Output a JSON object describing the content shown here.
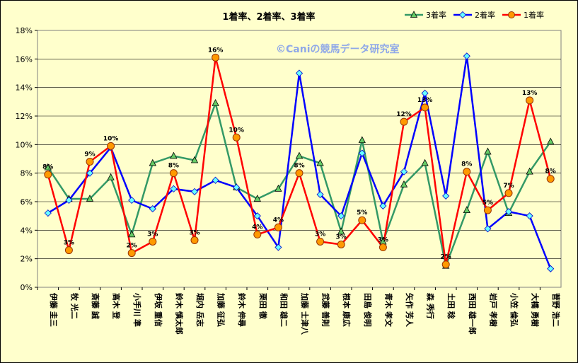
{
  "chart_data": {
    "type": "line",
    "title": "1着率、2着率、3着率",
    "watermark": "©Caniの競馬データ研究室",
    "ylim": [
      0,
      18
    ],
    "yticks": [
      "0%",
      "2%",
      "4%",
      "6%",
      "8%",
      "10%",
      "12%",
      "14%",
      "16%",
      "18%"
    ],
    "categories": [
      "伊藤 圭三",
      "牧 光二",
      "斎藤 誠",
      "高木 登",
      "小手川 準",
      "伊坂 重信",
      "鈴木 慎太郎",
      "堀内 岳志",
      "加藤 征弘",
      "鈴木 伸尋",
      "栗田 徹",
      "和田 雄二",
      "加藤 士津八",
      "武藤 善則",
      "根本 康広",
      "田島 俊明",
      "青木 孝文",
      "矢作 芳人",
      "森 秀行",
      "土田 稔",
      "西田 雄一郎",
      "岩戸 孝樹",
      "小笠 倫弘",
      "大橋 勇樹",
      "菅野 浩二"
    ],
    "grid": true,
    "legend_position": "top-right",
    "series": [
      {
        "name": "3着率",
        "color": "#339966",
        "marker": "triangle",
        "values": [
          8.4,
          6.2,
          6.2,
          7.7,
          3.7,
          8.7,
          9.2,
          8.9,
          12.9,
          7.0,
          6.2,
          6.9,
          9.2,
          8.7,
          3.9,
          10.3,
          3.2,
          7.2,
          8.7,
          1.5,
          5.4,
          9.5,
          5.2,
          8.1,
          10.2
        ]
      },
      {
        "name": "2着率",
        "color": "#0000FF",
        "marker": "diamond",
        "values": [
          5.2,
          6.1,
          8.0,
          9.8,
          6.1,
          5.5,
          6.9,
          6.7,
          7.5,
          7.0,
          5.0,
          2.8,
          15.0,
          6.5,
          5.0,
          9.4,
          5.7,
          8.1,
          13.6,
          6.4,
          16.2,
          4.1,
          5.3,
          5.0,
          1.3
        ]
      },
      {
        "name": "1着率",
        "color": "#FF0000",
        "marker": "circle",
        "values": [
          7.9,
          2.6,
          8.8,
          9.9,
          2.4,
          3.2,
          8.0,
          3.3,
          16.1,
          10.5,
          3.7,
          4.2,
          8.0,
          3.2,
          3.0,
          4.7,
          2.8,
          11.6,
          12.6,
          1.6,
          8.1,
          5.4,
          6.6,
          13.1,
          7.6
        ],
        "data_labels": [
          "8%",
          "3%",
          "9%",
          "10%",
          "2%",
          "3%",
          "8%",
          "3%",
          "16%",
          "10%",
          "4%",
          "4%",
          "8%",
          "3%",
          "3%",
          "5%",
          "3%",
          "12%",
          "13%",
          "2%",
          "8%",
          "5%",
          "7%",
          "13%",
          "8%"
        ]
      }
    ]
  }
}
